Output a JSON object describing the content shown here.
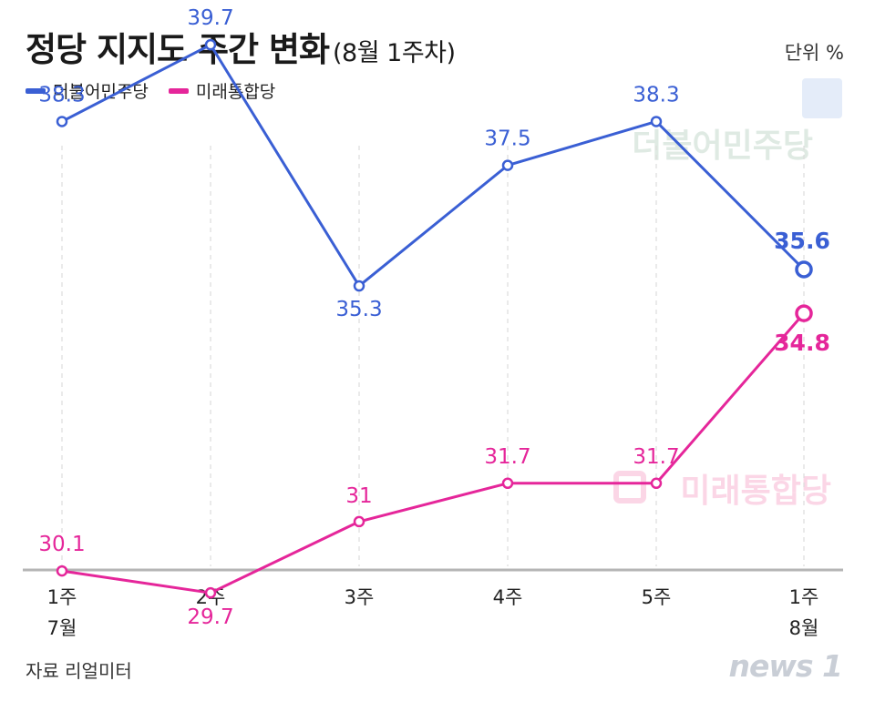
{
  "title": "정당 지지도 주간 변화",
  "subtitle": "(8월 1주차)",
  "unit": "단위  %",
  "source": "자료  리얼미터",
  "brand": "news 1",
  "watermarks": {
    "upper": "더불어민주당",
    "lower": "미래통합당"
  },
  "chart_data": {
    "type": "line",
    "categories": [
      [
        "1주",
        "7월"
      ],
      [
        "2주"
      ],
      [
        "3주"
      ],
      [
        "4주"
      ],
      [
        "5주"
      ],
      [
        "1주",
        "8월"
      ]
    ],
    "series": [
      {
        "name": "더불어민주당",
        "color": "#3a5fd4",
        "values": [
          38.3,
          39.7,
          35.3,
          37.5,
          38.3,
          35.6
        ],
        "labels": [
          "38.3",
          "39.7",
          "35.3",
          "37.5",
          "38.3",
          "35.6"
        ]
      },
      {
        "name": "미래통합당",
        "color": "#e5269a",
        "values": [
          30.1,
          29.7,
          31,
          31.7,
          31.7,
          34.8
        ],
        "labels": [
          "30.1",
          "29.7",
          "31",
          "31.7",
          "31.7",
          "34.8"
        ]
      }
    ],
    "legend_position": "top-left",
    "grid": "vertical dashed",
    "ylim": [
      25,
      41
    ]
  }
}
